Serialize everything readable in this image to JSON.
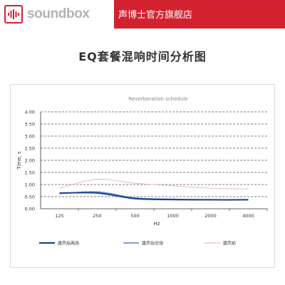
{
  "header": {
    "logo_text": "soundbox",
    "store_name": "声博士官方旗舰店"
  },
  "page": {
    "title": "EQ套餐混响时间分析图"
  },
  "colors": {
    "brand_red": "#d3222f",
    "series_1": "#1f3f93",
    "series_2": "#5b84c4",
    "series_3": "#e8b8bd"
  },
  "chart_data": {
    "type": "line",
    "title": "Reverberation schedule",
    "xlabel": "Hz",
    "ylabel": "Time, s",
    "categories": [
      "125",
      "250",
      "500",
      "1000",
      "2000",
      "4000"
    ],
    "ylim": [
      0,
      4
    ],
    "yticks": [
      "0.00",
      "0.50",
      "1.00",
      "1.50",
      "2.00",
      "2.50",
      "3.00",
      "3.50",
      "4.00"
    ],
    "grid": true,
    "legend_position": "bottom",
    "series": [
      {
        "name": "建声后两场",
        "values": [
          0.65,
          0.65,
          0.42,
          0.38,
          0.37,
          0.37
        ]
      },
      {
        "name": "建声后空场",
        "values": [
          0.62,
          0.7,
          0.45,
          0.4,
          0.38,
          0.38
        ]
      },
      {
        "name": "建声前",
        "values": [
          0.85,
          1.22,
          1.05,
          0.95,
          0.85,
          0.82
        ]
      }
    ]
  }
}
